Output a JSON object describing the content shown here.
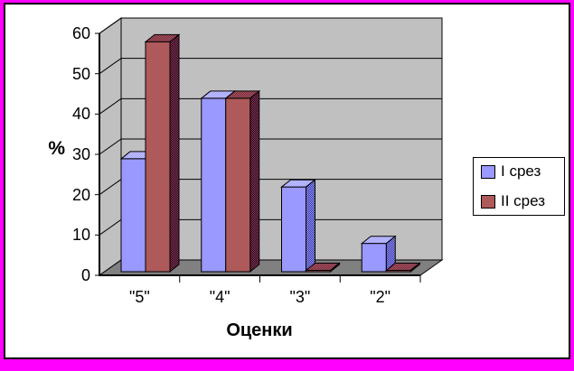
{
  "chart_data": {
    "type": "bar",
    "variant": "3d-column",
    "title": "",
    "categories": [
      "\"5\"",
      "\"4\"",
      "\"3\"",
      "\"2\""
    ],
    "series": [
      {
        "name": "I срез",
        "values": [
          28,
          43,
          21,
          7
        ],
        "color": "#9999FF",
        "top_colors": [
          "#9999FF",
          "#CCCCFF"
        ],
        "side_colors": [
          "#9999FF",
          "#333399"
        ]
      },
      {
        "name": "II срез",
        "values": [
          57,
          43,
          0,
          0
        ],
        "color": "#AE5A5A",
        "top_colors": [
          "#AE5A5A",
          "#6E2744"
        ],
        "side_colors": [
          "#9C3A66",
          "#12030A"
        ]
      }
    ],
    "xlabel": "Оценки",
    "ylabel": "%",
    "ylim": [
      0,
      60
    ],
    "yticks": [
      0,
      10,
      20,
      30,
      40,
      50,
      60
    ],
    "grid": true,
    "legend_position": "right",
    "wall_color": "#C0C0C0",
    "floor_color": "#808080",
    "gridline_color": "#000000",
    "frame_color": "#FF00FF",
    "chart_bg": "#FFFFFF"
  }
}
